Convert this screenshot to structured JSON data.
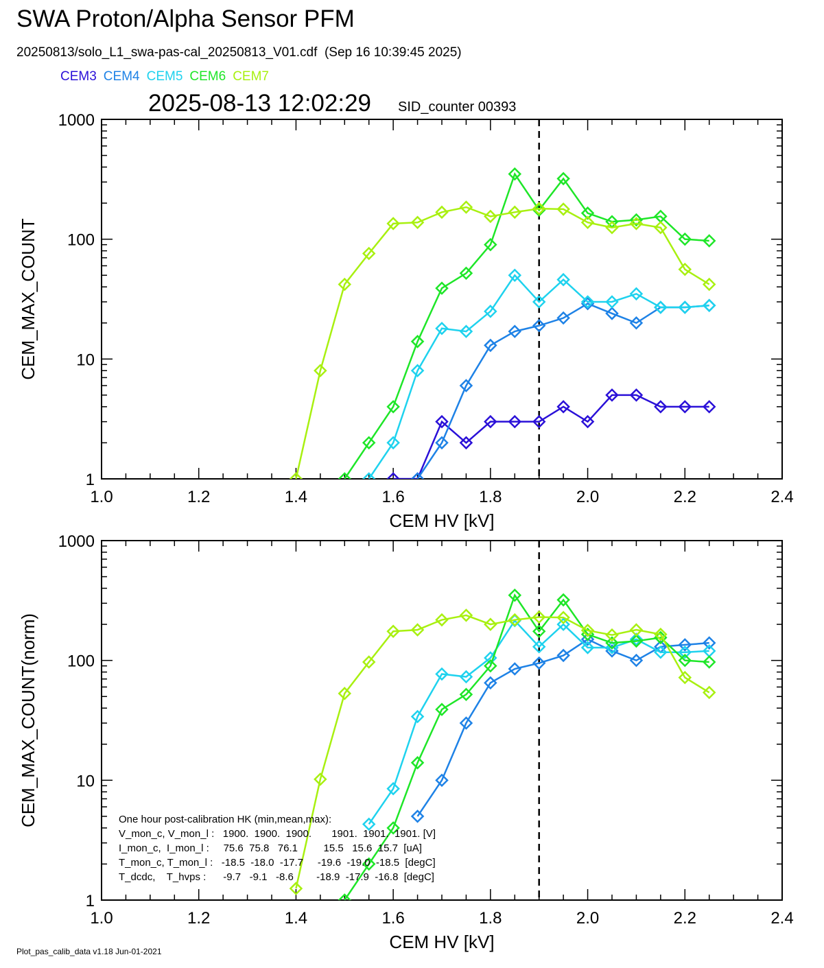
{
  "header": {
    "title": "SWA Proton/Alpha Sensor PFM",
    "subtitle": "20250813/solo_L1_swa-pas-cal_20250813_V01.cdf  (Sep 16 10:39:45 2025)",
    "timestamp": "2025-08-13 12:02:29",
    "sid_counter": "SID_counter 00393"
  },
  "legend": [
    {
      "name": "CEM3",
      "color": "#2a10d8"
    },
    {
      "name": "CEM4",
      "color": "#1e82e6"
    },
    {
      "name": "CEM5",
      "color": "#1ed2ee"
    },
    {
      "name": "CEM6",
      "color": "#1ee628"
    },
    {
      "name": "CEM7",
      "color": "#a8f010"
    }
  ],
  "hk_box": {
    "title": "One hour post-calibration HK (min,mean,max):",
    "lines": [
      "V_mon_c, V_mon_l :   1900.  1900.  1900.       1901.  1901.  1901. [V]",
      "I_mon_c,  I_mon_l :     75.6  75.8   76.1         15.5   15.6  15.7  [uA]",
      "T_mon_c, T_mon_l :   -18.5  -18.0  -17.7     -19.6  -19.0  -18.5  [degC]",
      "T_dcdc,    T_hvps :      -9.7   -9.1   -8.6        -18.9  -17.9  -16.8  [degC]"
    ]
  },
  "footer": "Plot_pas_calib_data v1.18 Jun-01-2021",
  "chart_data": [
    {
      "type": "line",
      "marker": "diamond",
      "xlabel": "CEM HV [kV]",
      "ylabel": "CEM_MAX_COUNT",
      "xlim": [
        1.0,
        2.4
      ],
      "ylim": [
        1,
        1000
      ],
      "yscale": "log",
      "x_ticks": [
        "1.0",
        "1.2",
        "1.4",
        "1.6",
        "1.8",
        "2.0",
        "2.2",
        "2.4"
      ],
      "y_ticks": [
        "1",
        "10",
        "100",
        "1000"
      ],
      "vline": 1.9,
      "series": [
        {
          "name": "CEM3",
          "color": "#2a10d8",
          "x": [
            1.6,
            1.65,
            1.7,
            1.75,
            1.8,
            1.85,
            1.9,
            1.95,
            2.0,
            2.05,
            2.1,
            2.15,
            2.2,
            2.25
          ],
          "y": [
            1,
            1,
            3,
            2,
            3,
            3,
            3,
            4,
            3,
            5,
            5,
            4,
            4,
            4
          ]
        },
        {
          "name": "CEM4",
          "color": "#1e82e6",
          "x": [
            1.65,
            1.7,
            1.75,
            1.8,
            1.85,
            1.9,
            1.95,
            2.0,
            2.05,
            2.1,
            2.15,
            2.2,
            2.25
          ],
          "y": [
            1,
            2,
            6,
            13,
            17,
            19,
            22,
            29,
            24,
            20,
            27,
            27,
            28
          ]
        },
        {
          "name": "CEM5",
          "color": "#1ed2ee",
          "x": [
            1.55,
            1.6,
            1.65,
            1.7,
            1.75,
            1.8,
            1.85,
            1.9,
            1.95,
            2.0,
            2.05,
            2.1,
            2.15,
            2.2,
            2.25
          ],
          "y": [
            1,
            2,
            8,
            18,
            17,
            25,
            50,
            30,
            46,
            30,
            30,
            35,
            27,
            27,
            28
          ]
        },
        {
          "name": "CEM6",
          "color": "#1ee628",
          "x": [
            1.5,
            1.55,
            1.6,
            1.65,
            1.7,
            1.75,
            1.8,
            1.85,
            1.9,
            1.95,
            2.0,
            2.05,
            2.1,
            2.15,
            2.2,
            2.25
          ],
          "y": [
            1,
            2,
            4,
            14,
            39,
            52,
            90,
            350,
            175,
            320,
            165,
            140,
            145,
            155,
            100,
            97
          ]
        },
        {
          "name": "CEM7",
          "color": "#a8f010",
          "x": [
            1.4,
            1.45,
            1.5,
            1.55,
            1.6,
            1.65,
            1.7,
            1.75,
            1.8,
            1.85,
            1.9,
            1.95,
            2.0,
            2.05,
            2.1,
            2.15,
            2.2,
            2.25
          ],
          "y": [
            1,
            8,
            42,
            76,
            135,
            138,
            168,
            185,
            155,
            168,
            180,
            178,
            138,
            125,
            135,
            125,
            56,
            42
          ]
        }
      ]
    },
    {
      "type": "line",
      "marker": "diamond",
      "xlabel": "CEM HV [kV]",
      "ylabel": "CEM_MAX_COUNT(norm)",
      "xlim": [
        1.0,
        2.4
      ],
      "ylim": [
        1,
        1000
      ],
      "yscale": "log",
      "x_ticks": [
        "1.0",
        "1.2",
        "1.4",
        "1.6",
        "1.8",
        "2.0",
        "2.2",
        "2.4"
      ],
      "y_ticks": [
        "1",
        "10",
        "100",
        "1000"
      ],
      "vline": 1.9,
      "series": [
        {
          "name": "CEM4",
          "color": "#1e82e6",
          "x": [
            1.65,
            1.7,
            1.75,
            1.8,
            1.85,
            1.9,
            1.95,
            2.0,
            2.05,
            2.1,
            2.15,
            2.2,
            2.25
          ],
          "y": [
            5,
            10,
            30,
            65,
            85,
            95,
            110,
            150,
            120,
            100,
            130,
            135,
            140
          ]
        },
        {
          "name": "CEM5",
          "color": "#1ed2ee",
          "x": [
            1.55,
            1.6,
            1.65,
            1.7,
            1.75,
            1.8,
            1.85,
            1.9,
            1.95,
            2.0,
            2.05,
            2.1,
            2.15,
            2.2,
            2.25
          ],
          "y": [
            4.3,
            8.5,
            34,
            77,
            73,
            105,
            215,
            130,
            200,
            128,
            128,
            150,
            117,
            117,
            120
          ]
        },
        {
          "name": "CEM6",
          "color": "#1ee628",
          "x": [
            1.5,
            1.55,
            1.6,
            1.65,
            1.7,
            1.75,
            1.8,
            1.85,
            1.9,
            1.95,
            2.0,
            2.05,
            2.1,
            2.15,
            2.2,
            2.25
          ],
          "y": [
            1,
            2,
            4,
            14,
            39,
            52,
            90,
            350,
            175,
            320,
            165,
            140,
            145,
            155,
            100,
            97
          ]
        },
        {
          "name": "CEM7",
          "color": "#a8f010",
          "x": [
            1.4,
            1.45,
            1.5,
            1.55,
            1.6,
            1.65,
            1.7,
            1.75,
            1.8,
            1.85,
            1.9,
            1.95,
            2.0,
            2.05,
            2.1,
            2.15,
            2.2,
            2.25
          ],
          "y": [
            1.25,
            10.2,
            53,
            97,
            175,
            180,
            218,
            238,
            200,
            218,
            230,
            228,
            178,
            163,
            180,
            165,
            72,
            54
          ]
        }
      ]
    }
  ]
}
